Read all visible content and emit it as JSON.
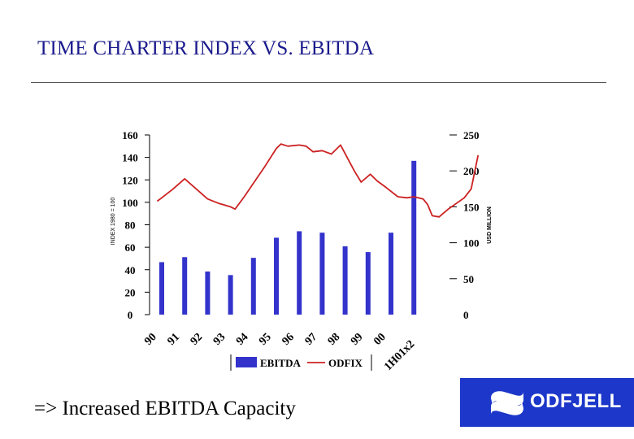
{
  "slide": {
    "title": "TIME CHARTER INDEX VS. EBITDA",
    "caption": "=> Increased EBITDA Capacity",
    "logo_text": "ODFJELL"
  },
  "colors": {
    "bar": "#3333cc",
    "line": "#cc2222",
    "title": "#1a1a8c",
    "logo_bg": "#1c37c9"
  },
  "chart_data": {
    "type": "bar",
    "categories": [
      "90",
      "91",
      "92",
      "93",
      "94",
      "95",
      "96",
      "97",
      "98",
      "99",
      "00",
      "1H01x2"
    ],
    "series": [
      {
        "name": "EBITDA",
        "type": "bar",
        "axis": "right",
        "values": [
          73,
          80,
          60,
          55,
          79,
          107,
          116,
          114,
          95,
          87,
          114,
          214
        ]
      },
      {
        "name": "ODFIX",
        "type": "line",
        "axis": "left",
        "points": [
          [
            -0.2,
            101
          ],
          [
            0,
            104
          ],
          [
            0.5,
            112
          ],
          [
            1,
            121
          ],
          [
            1.5,
            112
          ],
          [
            2,
            103
          ],
          [
            2.5,
            99
          ],
          [
            3,
            96
          ],
          [
            3.2,
            94
          ],
          [
            3.6,
            105
          ],
          [
            4,
            117
          ],
          [
            4.5,
            132
          ],
          [
            5,
            148
          ],
          [
            5.2,
            152
          ],
          [
            5.5,
            150
          ],
          [
            6,
            151
          ],
          [
            6.3,
            150
          ],
          [
            6.6,
            145
          ],
          [
            7,
            146
          ],
          [
            7.4,
            143
          ],
          [
            7.8,
            151
          ],
          [
            8.4,
            128
          ],
          [
            8.7,
            118
          ],
          [
            9.1,
            125
          ],
          [
            9.4,
            119
          ],
          [
            9.8,
            113
          ],
          [
            10.3,
            105
          ],
          [
            10.7,
            104
          ],
          [
            11,
            105
          ],
          [
            11.4,
            103
          ],
          [
            11.6,
            98
          ],
          [
            11.8,
            88
          ],
          [
            12.1,
            87
          ],
          [
            12.5,
            94
          ],
          [
            13.2,
            104
          ],
          [
            13.5,
            112
          ],
          [
            13.8,
            142
          ]
        ]
      }
    ],
    "left_axis": {
      "label": "INDEX 1980 = 100",
      "ticks": [
        0,
        20,
        40,
        60,
        80,
        100,
        120,
        140,
        160
      ],
      "range": [
        0,
        160
      ]
    },
    "right_axis": {
      "label": "USD MILLION",
      "ticks": [
        0,
        50,
        100,
        150,
        200,
        250
      ],
      "range": [
        0,
        250
      ]
    },
    "legend": [
      "EBITDA",
      "ODFIX"
    ],
    "legend_position": "bottom"
  }
}
